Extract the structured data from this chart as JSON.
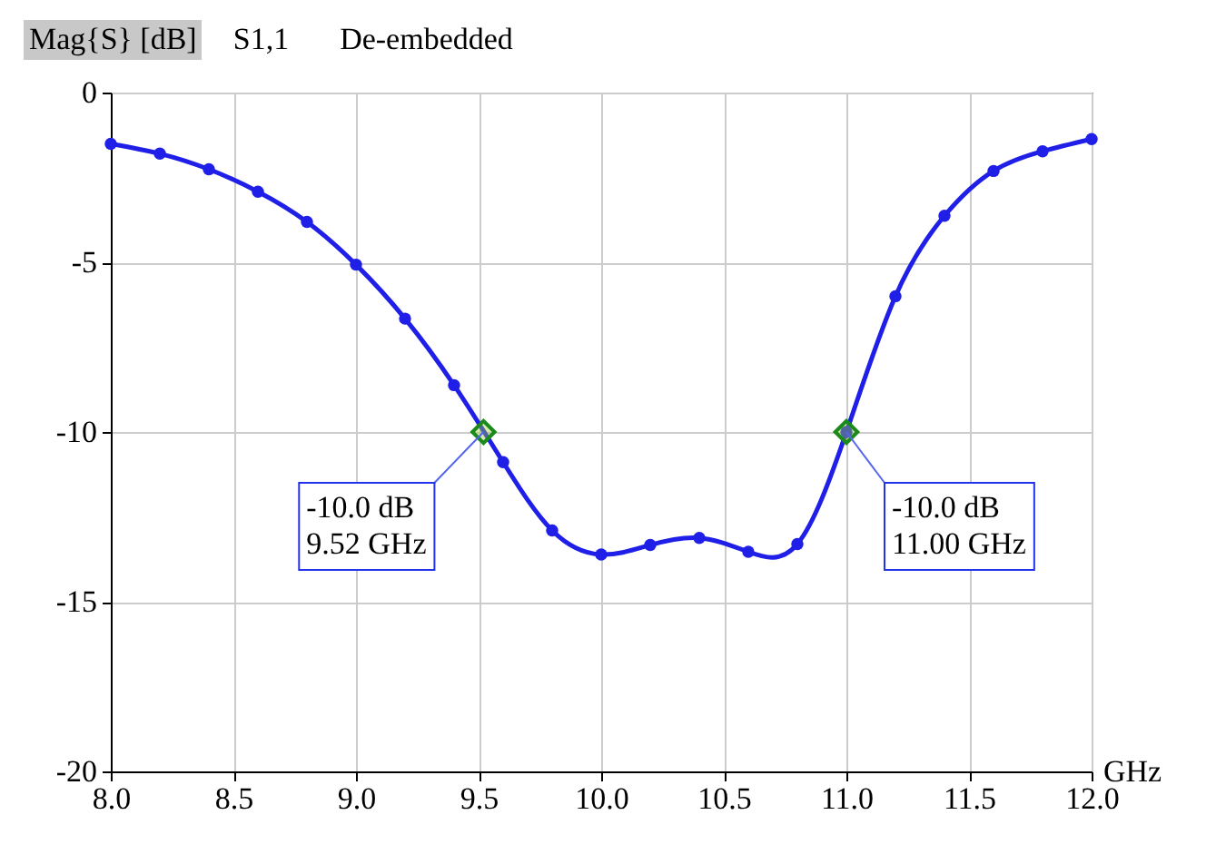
{
  "chart_data": {
    "type": "line",
    "title": "S1,1",
    "subtitle": "De-embedded",
    "ylabel": "Mag{S} [dB]",
    "xlabel": "GHz",
    "x": [
      8.0,
      8.2,
      8.4,
      8.6,
      8.8,
      9.0,
      9.2,
      9.4,
      9.6,
      9.8,
      10.0,
      10.2,
      10.4,
      10.6,
      10.8,
      11.0,
      11.2,
      11.4,
      11.6,
      11.8,
      12.0
    ],
    "series": [
      {
        "color": "#1f1fe8",
        "values": [
          -1.51,
          -1.8,
          -2.26,
          -2.92,
          -3.81,
          -5.07,
          -6.66,
          -8.62,
          -10.89,
          -12.9,
          -13.61,
          -13.33,
          -13.12,
          -13.53,
          -13.3,
          -10.0,
          -6.0,
          -3.63,
          -2.31,
          -1.73,
          -1.37
        ]
      }
    ],
    "xlim": [
      8,
      12
    ],
    "ylim": [
      -20,
      0
    ],
    "xticks": [
      {
        "value": 8,
        "label": "8.0"
      },
      8.5,
      {
        "value": 9,
        "label": "9.0"
      },
      9.5,
      {
        "value": 10,
        "label": "10.0"
      },
      10.5,
      {
        "value": 11,
        "label": "11.0"
      },
      11.5,
      {
        "value": 12,
        "label": "12.0"
      }
    ],
    "yticks": [
      -20,
      -15,
      -10,
      -5,
      0
    ],
    "grid": true,
    "marker": "circle",
    "line_style": "solid",
    "annotations": [
      {
        "text": "-10.0 dB\n9.52 GHz",
        "x": 9.52,
        "y": -10.0
      },
      {
        "text": "-10.0 dB\n11.00 GHz",
        "x": 11.0,
        "y": -10.0
      }
    ]
  }
}
